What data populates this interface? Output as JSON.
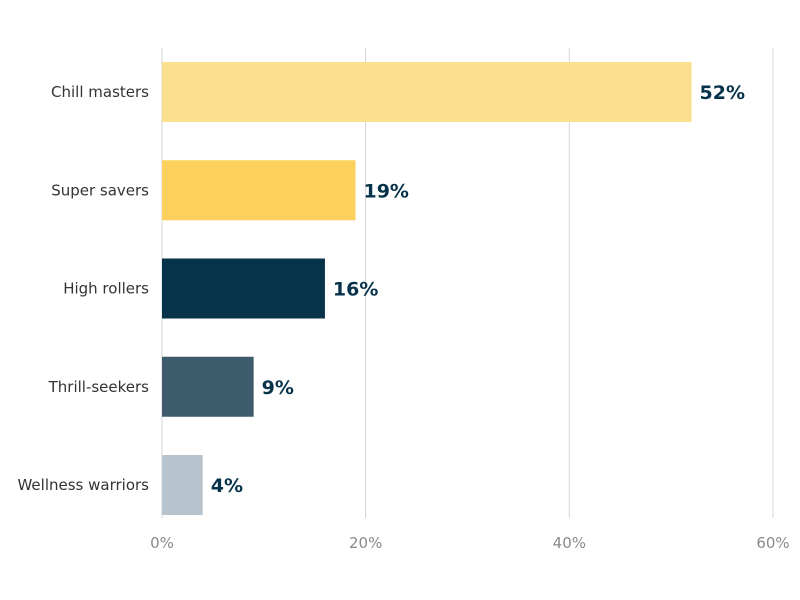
{
  "chart_data": {
    "type": "bar",
    "orientation": "horizontal",
    "title": "",
    "xlabel": "",
    "ylabel": "",
    "categories": [
      "Chill masters",
      "Super savers",
      "High rollers",
      "Thrill-seekers",
      "Wellness warriors"
    ],
    "values": [
      52,
      19,
      16,
      9,
      4
    ],
    "value_labels": [
      "52%",
      "19%",
      "16%",
      "9%",
      "4%"
    ],
    "colors": [
      "#f9df8e",
      "#fcd05c",
      "#06324a",
      "#3d5b6d",
      "#b8c4cd"
    ],
    "xlim": [
      0,
      60
    ],
    "ticks": [
      0,
      20,
      40,
      60
    ],
    "tick_labels": [
      "0%",
      "20%",
      "40%",
      "60%"
    ],
    "grid": "vertical",
    "legend": "none"
  }
}
